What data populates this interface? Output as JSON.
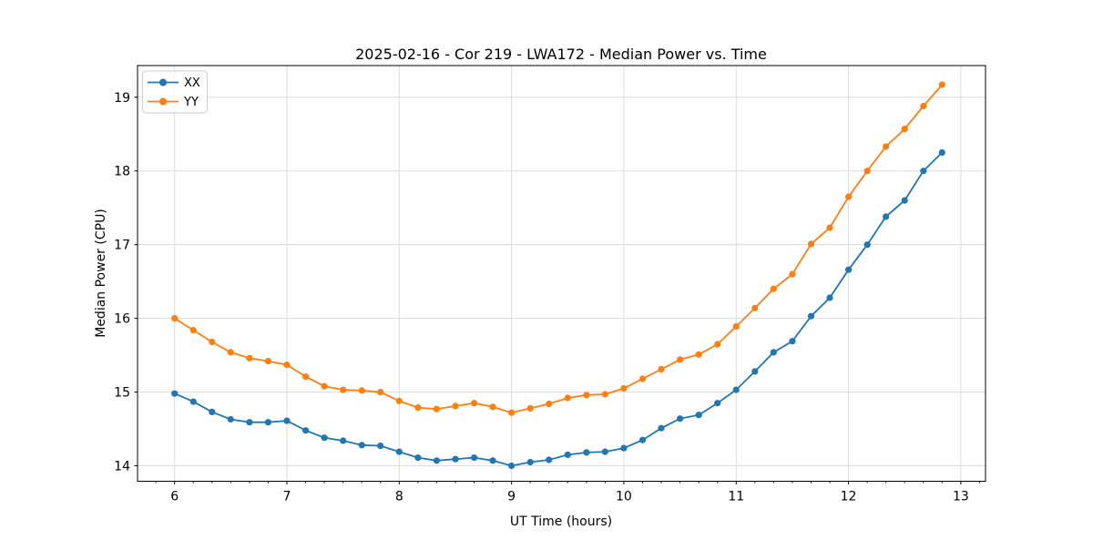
{
  "chart_data": {
    "type": "line",
    "title": "2025-02-16 - Cor 219 - LWA172 - Median Power vs. Time",
    "xlabel": "UT Time (hours)",
    "ylabel": "Median Power (CPU)",
    "xlim": [
      5.67,
      13.22
    ],
    "ylim": [
      13.79,
      19.43
    ],
    "xticks": [
      6,
      7,
      8,
      9,
      10,
      11,
      12,
      13
    ],
    "yticks": [
      14,
      15,
      16,
      17,
      18,
      19
    ],
    "x_minor_tick_step": 0.1667,
    "grid": true,
    "legend_position": "upper left",
    "marker": "circle",
    "grid_color": "#dcdcdc",
    "x": [
      6.0,
      6.167,
      6.333,
      6.5,
      6.667,
      6.833,
      7.0,
      7.167,
      7.333,
      7.5,
      7.667,
      7.833,
      8.0,
      8.167,
      8.333,
      8.5,
      8.667,
      8.833,
      9.0,
      9.167,
      9.333,
      9.5,
      9.667,
      9.833,
      10.0,
      10.167,
      10.333,
      10.5,
      10.667,
      10.833,
      11.0,
      11.167,
      11.333,
      11.5,
      11.667,
      11.833,
      12.0,
      12.167,
      12.333,
      12.5,
      12.667,
      12.833
    ],
    "series": [
      {
        "name": "XX",
        "color": "#1f77b4",
        "values": [
          14.98,
          14.87,
          14.73,
          14.63,
          14.59,
          14.59,
          14.61,
          14.48,
          14.38,
          14.34,
          14.28,
          14.27,
          14.19,
          14.11,
          14.07,
          14.09,
          14.11,
          14.07,
          14.0,
          14.05,
          14.08,
          14.15,
          14.18,
          14.19,
          14.24,
          14.35,
          14.51,
          14.64,
          14.69,
          14.85,
          15.03,
          15.28,
          15.54,
          15.69,
          16.03,
          16.28,
          16.66,
          17.0,
          17.38,
          17.6,
          18.0,
          18.25
        ]
      },
      {
        "name": "YY",
        "color": "#ff7f0e",
        "values": [
          16.0,
          15.84,
          15.68,
          15.54,
          15.46,
          15.42,
          15.37,
          15.21,
          15.08,
          15.03,
          15.02,
          15.0,
          14.88,
          14.79,
          14.77,
          14.81,
          14.85,
          14.8,
          14.72,
          14.78,
          14.84,
          14.92,
          14.96,
          14.97,
          15.05,
          15.18,
          15.31,
          15.44,
          15.51,
          15.65,
          15.89,
          16.14,
          16.4,
          16.6,
          17.01,
          17.23,
          17.65,
          18.0,
          18.33,
          18.57,
          18.88,
          19.17
        ]
      }
    ]
  }
}
